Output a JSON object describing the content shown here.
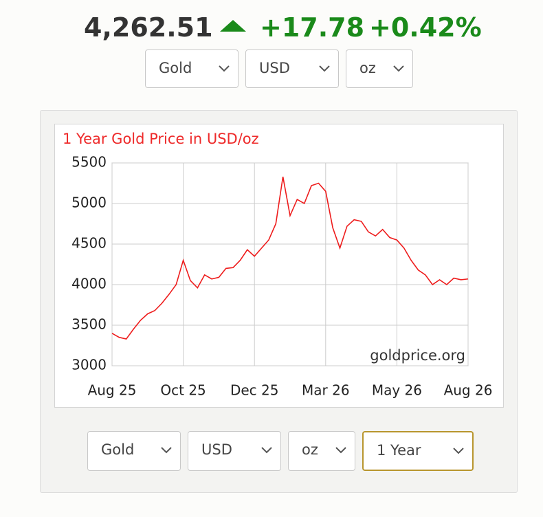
{
  "header": {
    "price": "4,262.51",
    "change": "+17.78",
    "change_percent": "+0.42%"
  },
  "top_selects": [
    "Gold",
    "USD",
    "oz"
  ],
  "chart_data": {
    "type": "line",
    "title": "1 Year Gold Price in USD/oz",
    "watermark": "goldprice.org",
    "categories": [
      "Aug 25",
      null,
      null,
      null,
      null,
      null,
      null,
      null,
      null,
      null,
      "Oct 25",
      null,
      null,
      null,
      null,
      null,
      null,
      null,
      null,
      null,
      "Dec 25",
      null,
      null,
      null,
      null,
      null,
      null,
      null,
      null,
      null,
      "Mar 26",
      null,
      null,
      null,
      null,
      null,
      null,
      null,
      null,
      null,
      "May 26",
      null,
      null,
      null,
      null,
      null,
      null,
      null,
      null,
      null,
      "Aug 26"
    ],
    "values": [
      3400,
      3350,
      3330,
      3450,
      3560,
      3640,
      3680,
      3770,
      3880,
      4000,
      4300,
      4050,
      3960,
      4120,
      4070,
      4090,
      4200,
      4210,
      4300,
      4430,
      4350,
      4450,
      4550,
      4750,
      5330,
      4850,
      5050,
      5000,
      5220,
      5250,
      5150,
      4700,
      4450,
      4720,
      4800,
      4780,
      4650,
      4600,
      4680,
      4580,
      4550,
      4450,
      4300,
      4180,
      4120,
      4000,
      4060,
      4000,
      4080,
      4060,
      4070
    ],
    "color": "#ee1c1c",
    "ylim": [
      3000,
      5500
    ],
    "yticks": [
      3000,
      3500,
      4000,
      4500,
      5000,
      5500
    ],
    "grid": true
  },
  "bottom_selects": [
    "Gold",
    "USD",
    "oz",
    "1 Year"
  ]
}
